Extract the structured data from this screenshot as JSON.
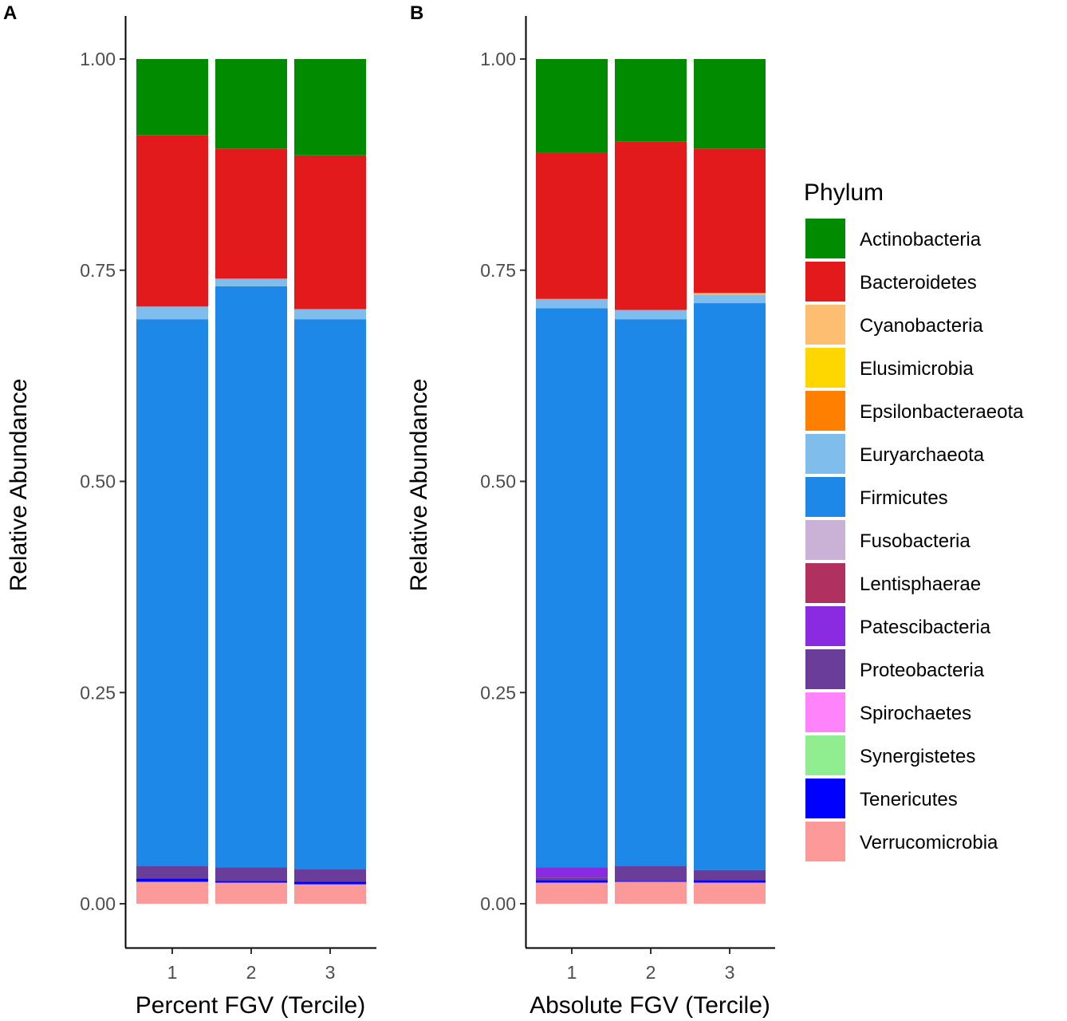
{
  "legend": {
    "title": "Phylum",
    "items": [
      {
        "name": "Actinobacteria",
        "color": "#008B00"
      },
      {
        "name": "Bacteroidetes",
        "color": "#E31A1C"
      },
      {
        "name": "Cyanobacteria",
        "color": "#FDBF6F"
      },
      {
        "name": "Elusimicrobia",
        "color": "#FFD700"
      },
      {
        "name": "Epsilonbacteraeota",
        "color": "#FF7F00"
      },
      {
        "name": "Euryarchaeota",
        "color": "#7EBDEC"
      },
      {
        "name": "Firmicutes",
        "color": "#1E88E9"
      },
      {
        "name": "Fusobacteria",
        "color": "#CAB2D6"
      },
      {
        "name": "Lentisphaerae",
        "color": "#B03060"
      },
      {
        "name": "Patescibacteria",
        "color": "#8A2BE2"
      },
      {
        "name": "Proteobacteria",
        "color": "#6A3D9A"
      },
      {
        "name": "Spirochaetes",
        "color": "#FF83FA"
      },
      {
        "name": "Synergistetes",
        "color": "#90EE90"
      },
      {
        "name": "Tenericutes",
        "color": "#0000FF"
      },
      {
        "name": "Verrucomicrobia",
        "color": "#FB9A99"
      }
    ]
  },
  "chart_data": [
    {
      "type": "bar",
      "stacked": true,
      "panel": "A",
      "title": "",
      "xlabel": "Percent FGV (Tercile)",
      "ylabel": "Relative Abundance",
      "categories": [
        "1",
        "2",
        "3"
      ],
      "yticks": [
        "0.00",
        "0.25",
        "0.50",
        "0.75",
        "1.00"
      ],
      "ylim": [
        -0.05,
        1.05
      ],
      "series": [
        {
          "name": "Verrucomicrobia",
          "values": [
            0.026,
            0.025,
            0.023
          ]
        },
        {
          "name": "Tenericutes",
          "values": [
            0.004,
            0.002,
            0.003
          ]
        },
        {
          "name": "Proteobacteria",
          "values": [
            0.015,
            0.016,
            0.015
          ]
        },
        {
          "name": "Firmicutes",
          "values": [
            0.647,
            0.688,
            0.651
          ]
        },
        {
          "name": "Euryarchaeota",
          "values": [
            0.015,
            0.009,
            0.012
          ]
        },
        {
          "name": "Bacteroidetes",
          "values": [
            0.203,
            0.154,
            0.182
          ]
        },
        {
          "name": "Actinobacteria",
          "values": [
            0.09,
            0.106,
            0.114
          ]
        }
      ]
    },
    {
      "type": "bar",
      "stacked": true,
      "panel": "B",
      "title": "",
      "xlabel": "Absolute FGV (Tercile)",
      "ylabel": "Relative Abundance",
      "categories": [
        "1",
        "2",
        "3"
      ],
      "yticks": [
        "0.00",
        "0.25",
        "0.50",
        "0.75",
        "1.00"
      ],
      "ylim": [
        -0.05,
        1.05
      ],
      "series": [
        {
          "name": "Verrucomicrobia",
          "values": [
            0.025,
            0.026,
            0.025
          ]
        },
        {
          "name": "Tenericutes",
          "values": [
            0.003,
            0.001,
            0.003
          ]
        },
        {
          "name": "Proteobacteria",
          "values": [
            0.003,
            0.018,
            0.012
          ]
        },
        {
          "name": "Patescibacteria",
          "values": [
            0.012,
            0.0,
            0.0
          ]
        },
        {
          "name": "Firmicutes",
          "values": [
            0.662,
            0.647,
            0.671
          ]
        },
        {
          "name": "Euryarchaeota",
          "values": [
            0.011,
            0.011,
            0.01
          ]
        },
        {
          "name": "Cyanobacteria",
          "values": [
            0.0,
            0.0,
            0.002
          ]
        },
        {
          "name": "Bacteroidetes",
          "values": [
            0.173,
            0.199,
            0.171
          ]
        },
        {
          "name": "Actinobacteria",
          "values": [
            0.111,
            0.098,
            0.106
          ]
        }
      ]
    }
  ]
}
